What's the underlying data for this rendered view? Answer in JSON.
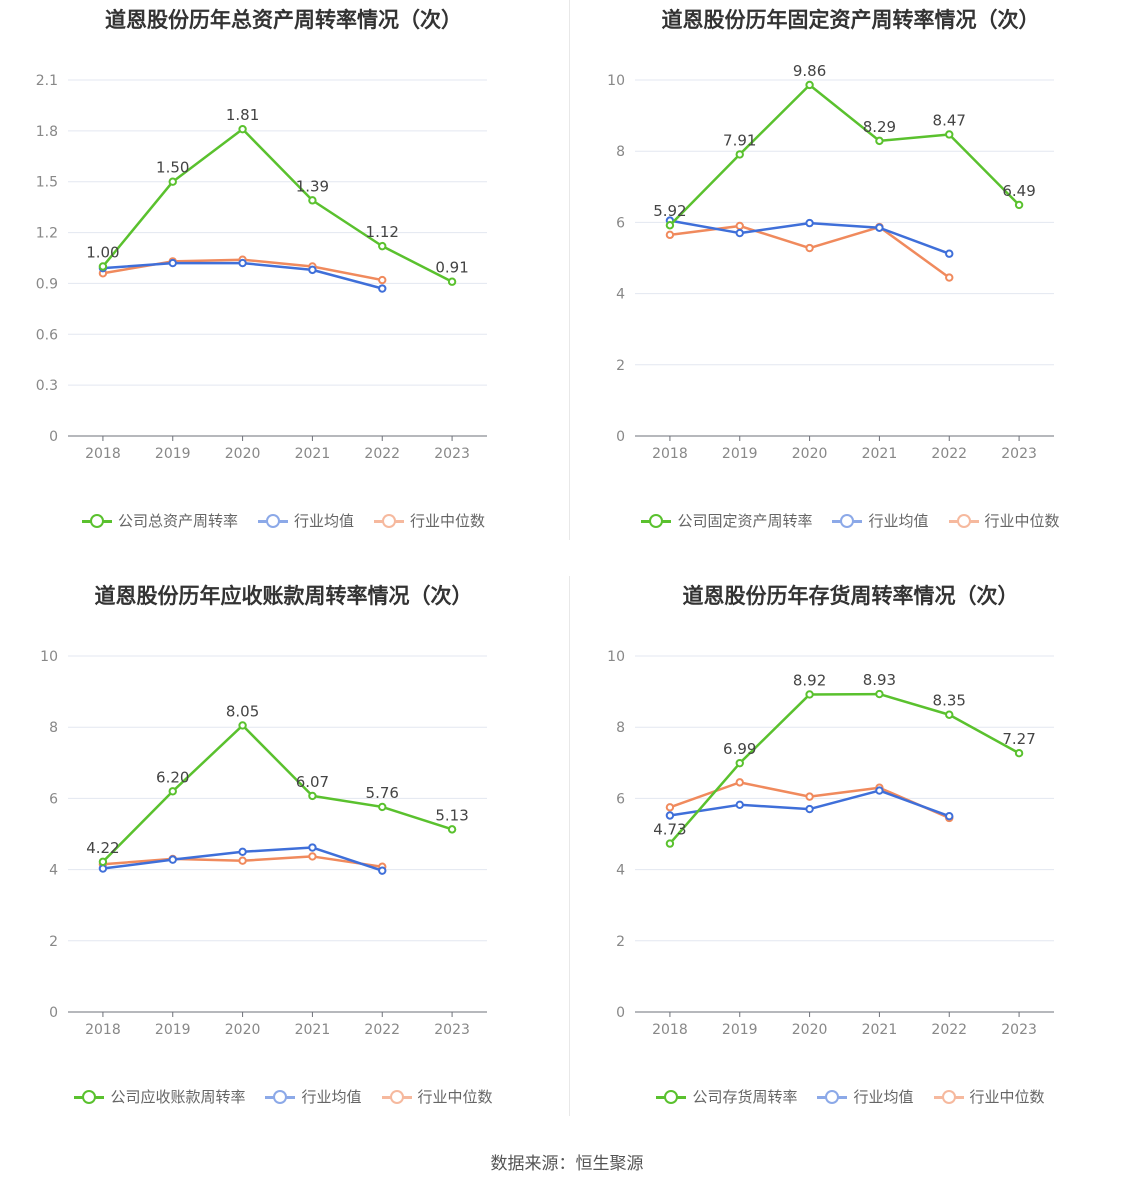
{
  "source_label": "数据来源：恒生聚源",
  "colors": {
    "company": "#5ac12e",
    "avg": "#3f6fd9",
    "median": "#f08a5d",
    "grid": "#e3e7f0",
    "axis": "#888888"
  },
  "chart_data": [
    {
      "type": "line",
      "title": "道恩股份历年总资产周转率情况（次）",
      "categories": [
        "2018",
        "2019",
        "2020",
        "2021",
        "2022",
        "2023"
      ],
      "ylim": [
        0,
        2.1
      ],
      "yticks": [
        "0",
        "0.3",
        "0.6",
        "0.9",
        "1.2",
        "1.5",
        "1.8",
        "2.1"
      ],
      "series": [
        {
          "name": "公司总资产周转率",
          "values": [
            1.0,
            1.5,
            1.81,
            1.39,
            1.12,
            0.91
          ],
          "labels": [
            "1.00",
            "1.50",
            "1.81",
            "1.39",
            "1.12",
            "0.91"
          ]
        },
        {
          "name": "行业均值",
          "values": [
            0.99,
            1.02,
            1.02,
            0.98,
            0.87,
            null
          ]
        },
        {
          "name": "行业中位数",
          "values": [
            0.96,
            1.03,
            1.04,
            1.0,
            0.92,
            null
          ]
        }
      ]
    },
    {
      "type": "line",
      "title": "道恩股份历年固定资产周转率情况（次）",
      "categories": [
        "2018",
        "2019",
        "2020",
        "2021",
        "2022",
        "2023"
      ],
      "ylim": [
        0,
        10
      ],
      "yticks": [
        "0",
        "2",
        "4",
        "6",
        "8",
        "10"
      ],
      "series": [
        {
          "name": "公司固定资产周转率",
          "values": [
            5.92,
            7.91,
            9.86,
            8.29,
            8.47,
            6.49
          ],
          "labels": [
            "5.92",
            "7.91",
            "9.86",
            "8.29",
            "8.47",
            "6.49"
          ]
        },
        {
          "name": "行业均值",
          "values": [
            6.05,
            5.7,
            5.98,
            5.85,
            5.12,
            null
          ]
        },
        {
          "name": "行业中位数",
          "values": [
            5.65,
            5.9,
            5.28,
            5.87,
            4.45,
            null
          ]
        }
      ]
    },
    {
      "type": "line",
      "title": "道恩股份历年应收账款周转率情况（次）",
      "categories": [
        "2018",
        "2019",
        "2020",
        "2021",
        "2022",
        "2023"
      ],
      "ylim": [
        0,
        10
      ],
      "yticks": [
        "0",
        "2",
        "4",
        "6",
        "8",
        "10"
      ],
      "series": [
        {
          "name": "公司应收账款周转率",
          "values": [
            4.22,
            6.2,
            8.05,
            6.07,
            5.76,
            5.13
          ],
          "labels": [
            "4.22",
            "6.20",
            "8.05",
            "6.07",
            "5.76",
            "5.13"
          ]
        },
        {
          "name": "行业均值",
          "values": [
            4.03,
            4.28,
            4.5,
            4.62,
            3.97,
            null
          ]
        },
        {
          "name": "行业中位数",
          "values": [
            4.15,
            4.3,
            4.25,
            4.37,
            4.08,
            null
          ]
        }
      ]
    },
    {
      "type": "line",
      "title": "道恩股份历年存货周转率情况（次）",
      "categories": [
        "2018",
        "2019",
        "2020",
        "2021",
        "2022",
        "2023"
      ],
      "ylim": [
        0,
        10
      ],
      "yticks": [
        "0",
        "2",
        "4",
        "6",
        "8",
        "10"
      ],
      "series": [
        {
          "name": "公司存货周转率",
          "values": [
            4.73,
            6.99,
            8.92,
            8.93,
            8.35,
            7.27
          ],
          "labels": [
            "4.73",
            "6.99",
            "8.92",
            "8.93",
            "8.35",
            "7.27"
          ]
        },
        {
          "name": "行业均值",
          "values": [
            5.52,
            5.82,
            5.7,
            6.22,
            5.5,
            null
          ]
        },
        {
          "name": "行业中位数",
          "values": [
            5.75,
            6.45,
            6.05,
            6.3,
            5.45,
            null
          ]
        }
      ]
    }
  ]
}
